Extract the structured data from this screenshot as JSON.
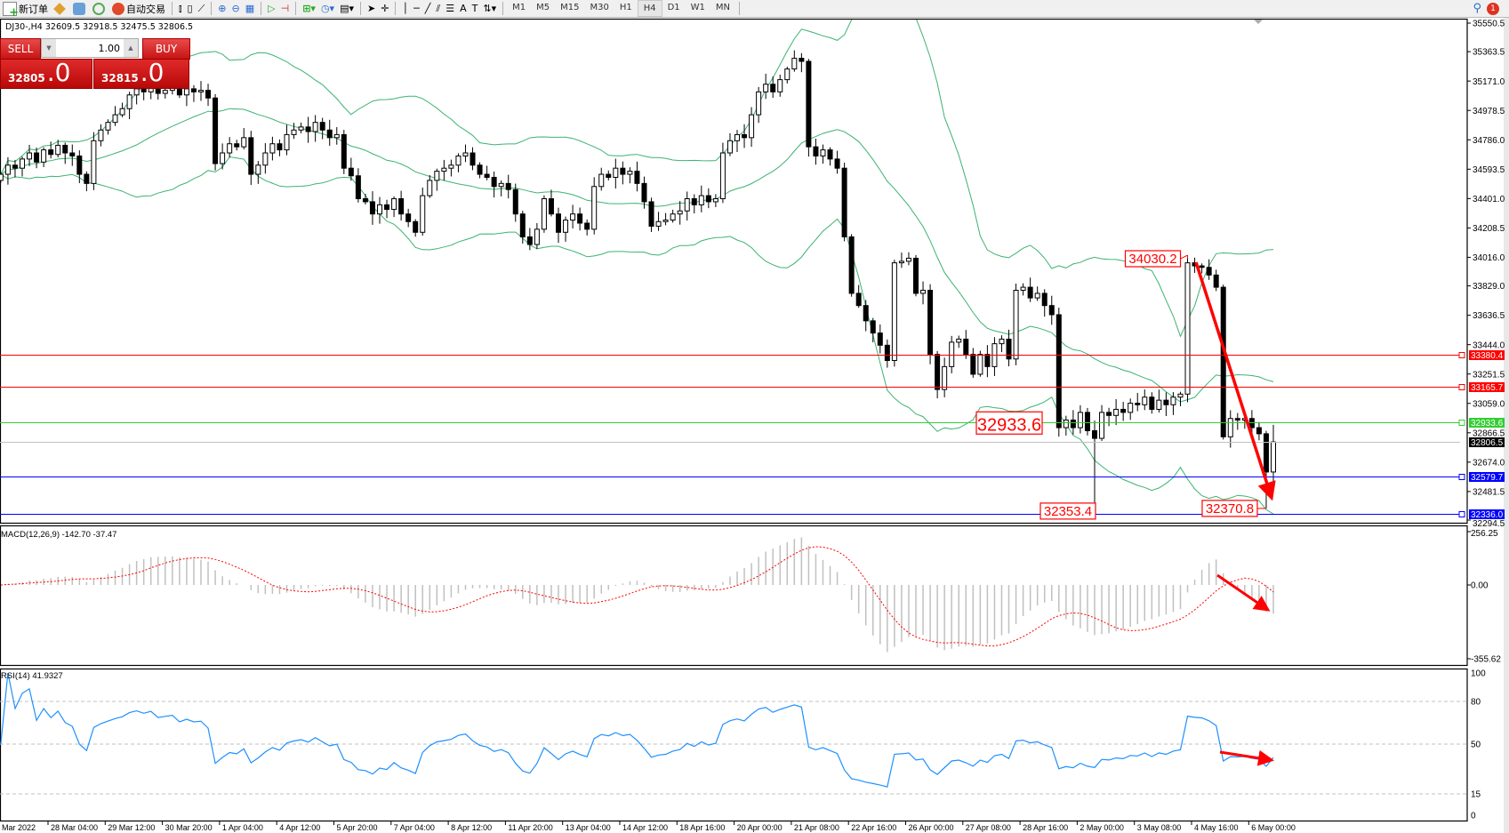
{
  "toolbar": {
    "new_order_label": "新订单",
    "auto_trading_label": "自动交易",
    "timeframes": [
      "M1",
      "M5",
      "M15",
      "M30",
      "H1",
      "H4",
      "D1",
      "W1",
      "MN"
    ],
    "active_timeframe": "H4",
    "notification_count": "1"
  },
  "chart_header": {
    "title": "DJ30-,H4  32609.5 32918.5 32475.5 32806.5"
  },
  "one_click": {
    "sell_label": "SELL",
    "buy_label": "BUY",
    "lot": "1.00",
    "sell_price_main": "32805",
    "sell_price_big": ".0",
    "buy_price_main": "32815",
    "buy_price_big": ".0"
  },
  "colors": {
    "bollinger": "#3cb371",
    "macd_hist": "#c0c0c0",
    "macd_signal": "#ff0000",
    "rsi": "#1e90ff",
    "annotation": "#ff0000"
  },
  "chart_data": {
    "type": "candlestick",
    "symbol": "DJ30-",
    "timeframe": "H4",
    "last_bar": {
      "open": 32609.5,
      "high": 32918.5,
      "low": 32475.5,
      "close": 32806.5
    },
    "closes": [
      34560,
      34620,
      34600,
      34660,
      34700,
      34640,
      34720,
      34690,
      34750,
      34700,
      34680,
      34560,
      34500,
      34780,
      34850,
      34900,
      34950,
      34990,
      35080,
      35120,
      35100,
      35140,
      35090,
      35110,
      35130,
      35080,
      35120,
      35100,
      35110,
      35060,
      34630,
      34700,
      34760,
      34740,
      34800,
      34560,
      34620,
      34700,
      34760,
      34720,
      34820,
      34850,
      34870,
      34840,
      34900,
      34850,
      34800,
      34820,
      34600,
      34550,
      34400,
      34380,
      34300,
      34360,
      34330,
      34400,
      34300,
      34250,
      34180,
      34420,
      34520,
      34580,
      34600,
      34620,
      34680,
      34700,
      34620,
      34560,
      34540,
      34480,
      34500,
      34460,
      34300,
      34150,
      34100,
      34200,
      34400,
      34300,
      34180,
      34260,
      34300,
      34240,
      34200,
      34480,
      34560,
      34540,
      34600,
      34560,
      34580,
      34500,
      34380,
      34220,
      34250,
      34260,
      34300,
      34320,
      34400,
      34360,
      34420,
      34380,
      34400,
      34700,
      34780,
      34820,
      34800,
      34950,
      35100,
      35150,
      35100,
      35180,
      35250,
      35320,
      35300,
      34740,
      34680,
      34720,
      34660,
      34600,
      34150,
      33780,
      33700,
      33600,
      33520,
      33440,
      33340,
      33980,
      33990,
      34010,
      33780,
      33800,
      33380,
      33150,
      33300,
      33460,
      33480,
      33380,
      33250,
      33380,
      33300,
      33450,
      33480,
      33350,
      33800,
      33820,
      33750,
      33780,
      33700,
      33640,
      32900,
      32950,
      32900,
      33000,
      32880,
      32830,
      33000,
      32980,
      33020,
      33000,
      33060,
      33050,
      33100,
      33020,
      33080,
      33050,
      33100,
      33120,
      33980,
      33960,
      33950,
      33900,
      33820,
      32840,
      32960,
      32950,
      32960,
      32900,
      32860,
      32609.5,
      32806.5
    ],
    "price_axis": [
      35550.5,
      35363.5,
      35171.0,
      34978.5,
      34786.0,
      34593.5,
      34401.0,
      34208.5,
      34016.0,
      33829.0,
      33636.5,
      33444.0,
      33251.5,
      33059.0,
      32866.5,
      32674.0,
      32481.5,
      32294.5
    ],
    "price_range": [
      32294.5,
      35550.5
    ],
    "time_axis": [
      "Mar 2022",
      "28 Mar 04:00",
      "29 Mar 12:00",
      "30 Mar 20:00",
      "1 Apr 04:00",
      "4 Apr 12:00",
      "5 Apr 20:00",
      "7 Apr 04:00",
      "8 Apr 12:00",
      "11 Apr 20:00",
      "13 Apr 04:00",
      "14 Apr 12:00",
      "18 Apr 16:00",
      "20 Apr 00:00",
      "21 Apr 08:00",
      "22 Apr 16:00",
      "26 Apr 00:00",
      "27 Apr 08:00",
      "28 Apr 16:00",
      "2 May 00:00",
      "3 May 08:00",
      "4 May 16:00",
      "6 May 00:00"
    ],
    "horizontal_lines": [
      {
        "price": 33380.4,
        "label": "33380.4",
        "color": "#ff0000"
      },
      {
        "price": 33165.7,
        "label": "33165.7",
        "color": "#ff0000"
      },
      {
        "price": 32933.6,
        "label": "32933.6",
        "color": "#32cd32"
      },
      {
        "price": 32806.5,
        "label": "32806.5",
        "color": "#000000",
        "line_color": "#c0c0c0"
      },
      {
        "price": 32579.7,
        "label": "32579.7",
        "color": "#0000ff"
      },
      {
        "price": 32336.0,
        "label": "32336.0",
        "color": "#0000ff"
      }
    ],
    "price_labels": [
      {
        "text": "34030.2",
        "price": 34030.2,
        "bar": 166,
        "kind": "high"
      },
      {
        "text": "32933.6",
        "price": 32933.6,
        "bar": 139,
        "kind": "level"
      },
      {
        "text": "32353.4",
        "price": 32353.4,
        "bar": 153,
        "kind": "low"
      },
      {
        "text": "32370.8",
        "price": 32370.8,
        "bar": 177,
        "kind": "low"
      }
    ],
    "indicators": {
      "bollinger": {
        "period": 20,
        "deviation": 2
      },
      "macd": {
        "label": "MACD(12,26,9) -142.70 -37.47",
        "fast": 12,
        "slow": 26,
        "signal": 9,
        "axis": [
          "256.25",
          "0.00",
          "-355.62"
        ],
        "range": [
          -355.62,
          256.25
        ]
      },
      "rsi": {
        "label": "RSI(14) 41.9327",
        "period": 14,
        "axis": [
          "100",
          "80",
          "50",
          "15",
          "0"
        ],
        "levels": [
          80,
          50,
          15
        ]
      }
    }
  }
}
